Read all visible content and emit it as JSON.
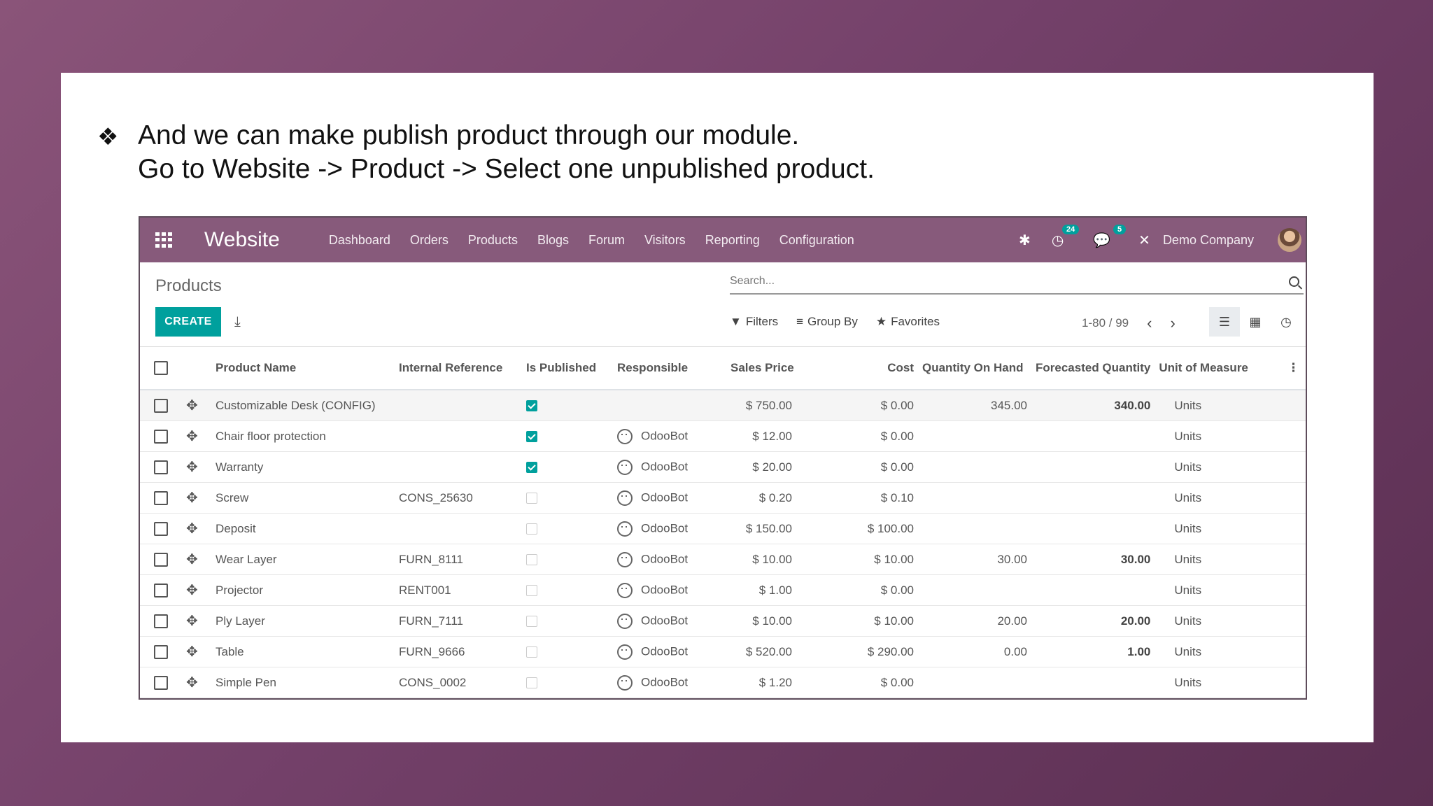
{
  "slide": {
    "bullet": "❖",
    "line1": "And we can make publish product through our module.",
    "line2": "Go to Website -> Product -> Select one unpublished product."
  },
  "navbar": {
    "brand": "Website",
    "menu": [
      "Dashboard",
      "Orders",
      "Products",
      "Blogs",
      "Forum",
      "Visitors",
      "Reporting",
      "Configuration"
    ],
    "activity_count": "24",
    "messages_count": "5",
    "company": "Demo Company"
  },
  "control_panel": {
    "title": "Products",
    "search_placeholder": "Search...",
    "create_label": "CREATE",
    "filters_label": "Filters",
    "groupby_label": "Group By",
    "favorites_label": "Favorites",
    "pager": "1-80 / 99"
  },
  "table": {
    "headers": [
      "Product Name",
      "Internal Reference",
      "Is Published",
      "Responsible",
      "Sales Price",
      "Cost",
      "Quantity On Hand",
      "Forecasted Quantity",
      "Unit of Measure"
    ],
    "rows": [
      {
        "name": "Customizable Desk (CONFIG)",
        "ref": "",
        "published": true,
        "responsible": "",
        "price": "$ 750.00",
        "cost": "$ 0.00",
        "qoh": "345.00",
        "forecast": "340.00",
        "uom": "Units"
      },
      {
        "name": "Chair floor protection",
        "ref": "",
        "published": true,
        "responsible": "OdooBot",
        "price": "$ 12.00",
        "cost": "$ 0.00",
        "qoh": "",
        "forecast": "",
        "uom": "Units"
      },
      {
        "name": "Warranty",
        "ref": "",
        "published": true,
        "responsible": "OdooBot",
        "price": "$ 20.00",
        "cost": "$ 0.00",
        "qoh": "",
        "forecast": "",
        "uom": "Units"
      },
      {
        "name": "Screw",
        "ref": "CONS_25630",
        "published": false,
        "responsible": "OdooBot",
        "price": "$ 0.20",
        "cost": "$ 0.10",
        "qoh": "",
        "forecast": "",
        "uom": "Units"
      },
      {
        "name": "Deposit",
        "ref": "",
        "published": false,
        "responsible": "OdooBot",
        "price": "$ 150.00",
        "cost": "$ 100.00",
        "qoh": "",
        "forecast": "",
        "uom": "Units"
      },
      {
        "name": "Wear Layer",
        "ref": "FURN_8111",
        "published": false,
        "responsible": "OdooBot",
        "price": "$ 10.00",
        "cost": "$ 10.00",
        "qoh": "30.00",
        "forecast": "30.00",
        "uom": "Units"
      },
      {
        "name": "Projector",
        "ref": "RENT001",
        "published": false,
        "responsible": "OdooBot",
        "price": "$ 1.00",
        "cost": "$ 0.00",
        "qoh": "",
        "forecast": "",
        "uom": "Units"
      },
      {
        "name": "Ply Layer",
        "ref": "FURN_7111",
        "published": false,
        "responsible": "OdooBot",
        "price": "$ 10.00",
        "cost": "$ 10.00",
        "qoh": "20.00",
        "forecast": "20.00",
        "uom": "Units"
      },
      {
        "name": "Table",
        "ref": "FURN_9666",
        "published": false,
        "responsible": "OdooBot",
        "price": "$ 520.00",
        "cost": "$ 290.00",
        "qoh": "0.00",
        "forecast": "1.00",
        "uom": "Units"
      },
      {
        "name": "Simple Pen",
        "ref": "CONS_0002",
        "published": false,
        "responsible": "OdooBot",
        "price": "$ 1.20",
        "cost": "$ 0.00",
        "qoh": "",
        "forecast": "",
        "uom": "Units"
      }
    ]
  },
  "colors": {
    "navbar": "#875a7b",
    "accent": "#00a09d",
    "background": "#7a4670"
  }
}
